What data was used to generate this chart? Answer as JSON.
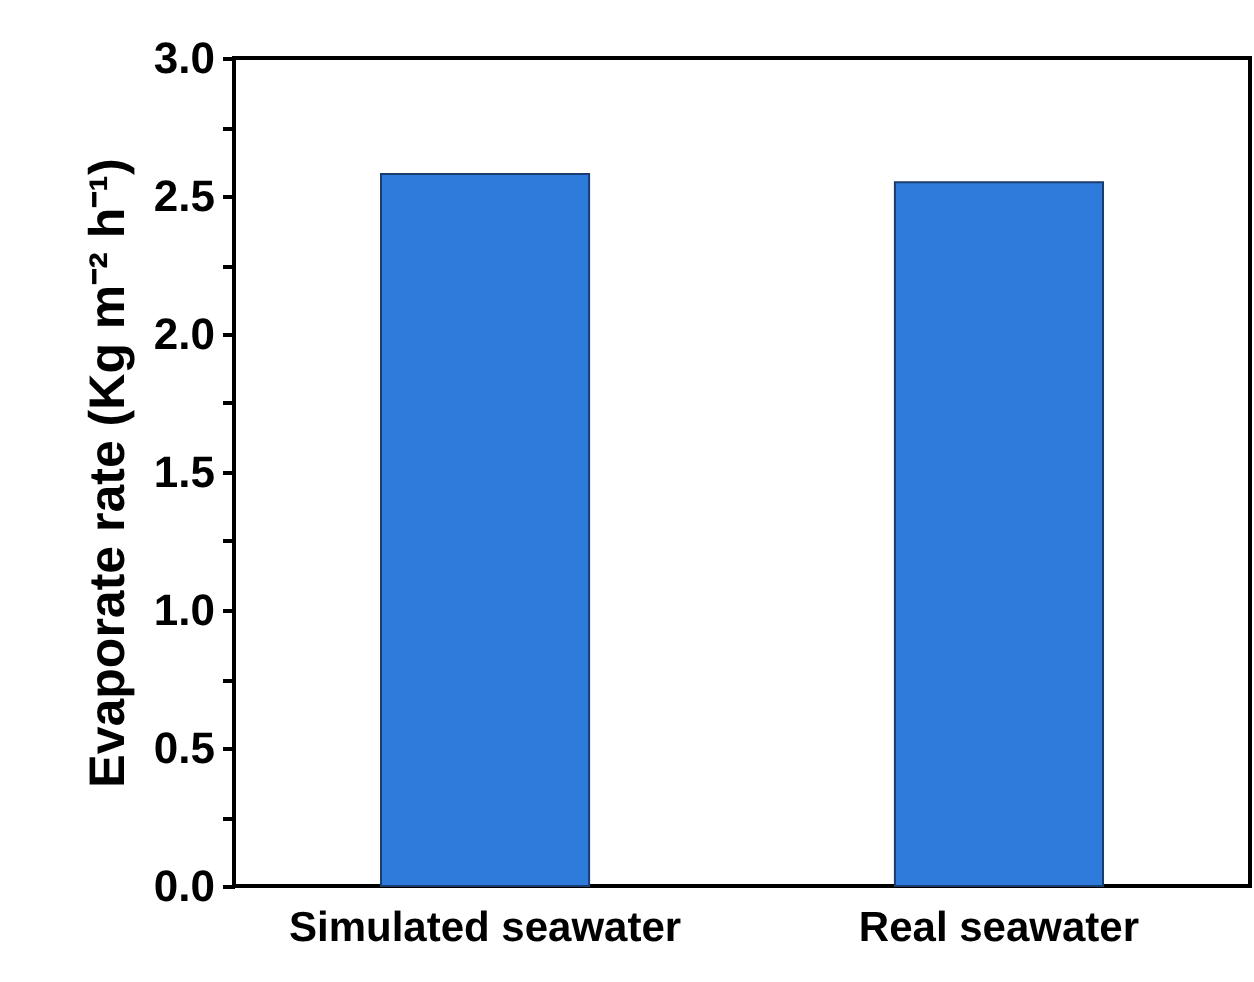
{
  "chart_data": {
    "type": "bar",
    "ylabel": "Evaporate rate (Kg m⁻² h⁻¹)",
    "categories": [
      "Simulated seawater",
      "Real seawater"
    ],
    "values": [
      2.58,
      2.55
    ],
    "color": "#2f7bdc",
    "ylim": [
      0,
      3.0
    ],
    "yticks": [
      {
        "value": 0,
        "label": "0.0"
      },
      {
        "value": 0.25,
        "label": null
      },
      0.5,
      {
        "value": 0.75,
        "label": null
      },
      {
        "value": 1,
        "label": "1.0"
      },
      {
        "value": 1.25,
        "label": null
      },
      1.5,
      {
        "value": 1.75,
        "label": null
      },
      {
        "value": 2,
        "label": "2.0"
      },
      {
        "value": 2.25,
        "label": null
      },
      2.5,
      {
        "value": 2.75,
        "label": null
      },
      {
        "value": 3,
        "label": "3.0"
      }
    ]
  }
}
